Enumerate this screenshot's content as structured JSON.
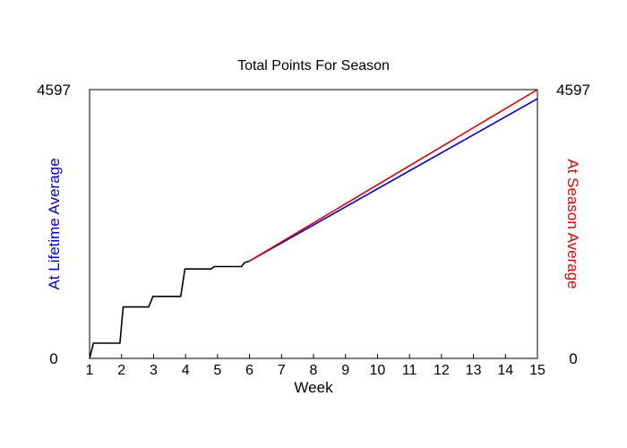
{
  "chart_data": {
    "type": "line",
    "title": "Total Points For Season",
    "xlabel": "Week",
    "ylabel_left": "At Lifetime Average",
    "ylabel_right": "At Season Average",
    "xlim": [
      1,
      15
    ],
    "ylim": [
      0,
      4597
    ],
    "x_ticks": [
      1,
      2,
      3,
      4,
      5,
      6,
      7,
      8,
      9,
      10,
      11,
      12,
      13,
      14,
      15
    ],
    "y_tick_labels": {
      "bottom": "0",
      "top": "4597"
    },
    "grid": false,
    "colors": {
      "actual": "#000000",
      "lifetime": "#0000cc",
      "season": "#dd0000",
      "axis_left_label": "#0000cc",
      "axis_right_label": "#dd0000"
    },
    "series": [
      {
        "key": "actual",
        "points": [
          [
            1.0,
            0
          ],
          [
            1.12,
            260
          ],
          [
            1.95,
            260
          ],
          [
            2.05,
            880
          ],
          [
            2.85,
            880
          ],
          [
            2.98,
            1060
          ],
          [
            3.85,
            1060
          ],
          [
            3.98,
            1530
          ],
          [
            4.8,
            1530
          ],
          [
            4.9,
            1570
          ],
          [
            5.75,
            1570
          ],
          [
            5.85,
            1640
          ],
          [
            5.98,
            1660
          ]
        ]
      },
      {
        "key": "lifetime",
        "points": [
          [
            5.98,
            1660
          ],
          [
            15.0,
            4440
          ]
        ]
      },
      {
        "key": "season",
        "points": [
          [
            5.98,
            1660
          ],
          [
            15.0,
            4597
          ]
        ]
      }
    ]
  }
}
